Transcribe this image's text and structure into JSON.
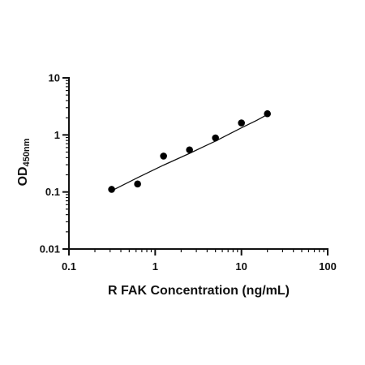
{
  "chart_data": {
    "type": "scatter",
    "title": "",
    "xlabel": "R FAK Concentration (ng/mL)",
    "ylabel_main": "OD",
    "ylabel_sub": "450nm",
    "x_scale": "log",
    "y_scale": "log",
    "xlim": [
      0.1,
      100
    ],
    "ylim": [
      0.01,
      10
    ],
    "x_ticks": [
      0.1,
      1,
      10,
      100
    ],
    "x_tick_labels": [
      "0.1",
      "1",
      "10",
      "100"
    ],
    "y_ticks": [
      0.01,
      0.1,
      1,
      10
    ],
    "y_tick_labels": [
      "0.01",
      "0.1",
      "1",
      "10"
    ],
    "grid": false,
    "legend": "none",
    "point_color": "#000000",
    "series": [
      {
        "x": [
          0.3125,
          0.625,
          1.25,
          2.5,
          5,
          10,
          20
        ],
        "y": [
          0.111,
          0.138,
          0.426,
          0.547,
          0.886,
          1.62,
          2.35
        ]
      }
    ],
    "fit_curve": {
      "x": [
        0.3125,
        0.625,
        1.25,
        2.5,
        5,
        10,
        15,
        20
      ],
      "y": [
        0.105,
        0.178,
        0.295,
        0.475,
        0.78,
        1.33,
        1.8,
        2.28
      ]
    }
  }
}
